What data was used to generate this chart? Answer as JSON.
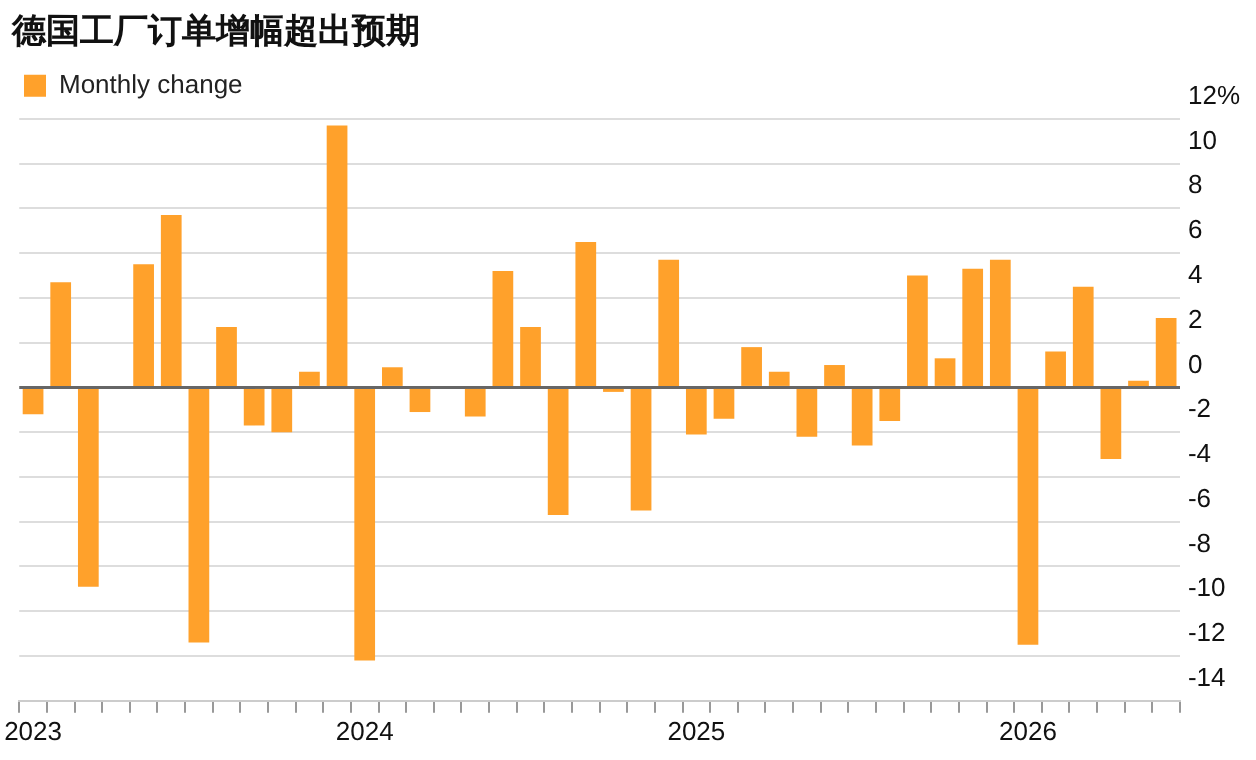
{
  "chart_data": {
    "type": "bar",
    "title": "德国工厂订单增幅超出预期",
    "categories": [
      "2023",
      null,
      null,
      null,
      null,
      null,
      null,
      null,
      null,
      null,
      null,
      null,
      "2024",
      null,
      null,
      null,
      null,
      null,
      null,
      null,
      null,
      null,
      null,
      null,
      "2025",
      null,
      null,
      null,
      null,
      null,
      null,
      null,
      null,
      null,
      null,
      null,
      "2026",
      null,
      null,
      null,
      null,
      null
    ],
    "series": [
      {
        "name": "Monthly change",
        "color": "#ffa12b",
        "values": [
          -1.2,
          4.7,
          -8.9,
          0,
          5.5,
          7.7,
          -11.4,
          2.7,
          -1.7,
          -2.0,
          0.7,
          11.7,
          -12.2,
          0.9,
          -1.1,
          0,
          -1.3,
          5.2,
          2.7,
          -5.7,
          6.5,
          -0.2,
          -5.5,
          5.7,
          -2.1,
          -1.4,
          1.8,
          0.7,
          -2.2,
          1.0,
          -2.6,
          -1.5,
          5.0,
          1.3,
          5.3,
          5.7,
          -11.5,
          1.6,
          4.5,
          -3.2,
          0.3,
          3.1
        ]
      }
    ],
    "ylim": [
      -14,
      12
    ],
    "yticks": [
      -14,
      -12,
      -10,
      -8,
      -6,
      -4,
      -2,
      0,
      2,
      4,
      6,
      8,
      10,
      {
        "value": 12,
        "label": "12%"
      }
    ],
    "grid": "y",
    "legend": "top left"
  }
}
